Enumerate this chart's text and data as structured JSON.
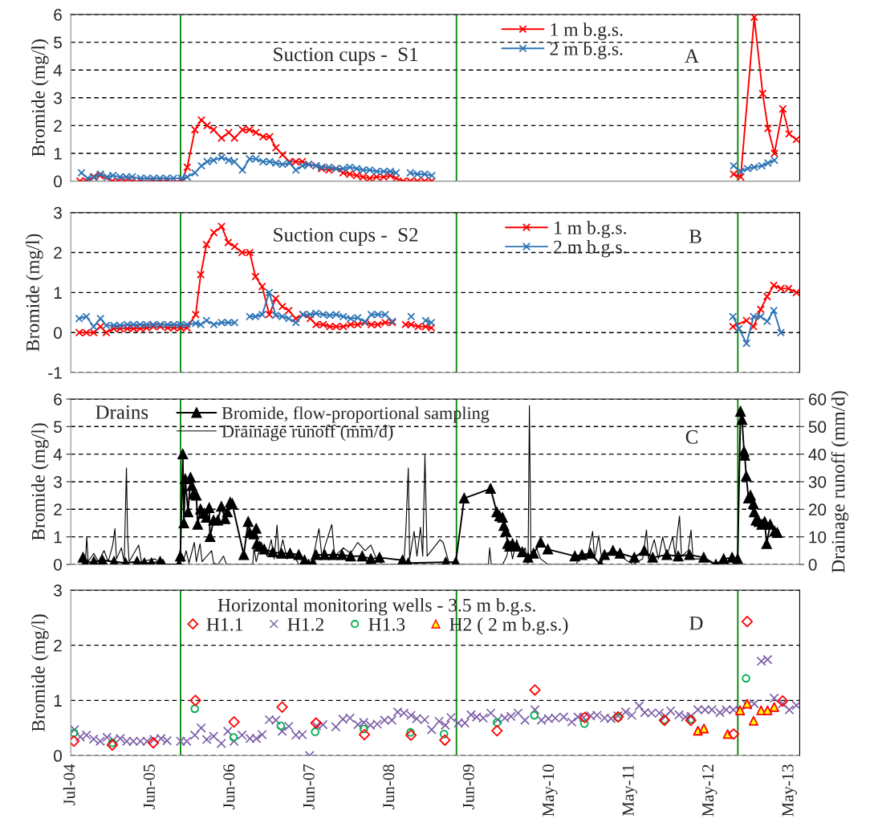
{
  "chart_data": [
    {
      "type": "line",
      "ylabel": "Bromide (mg/l)",
      "annotations": [
        "Suction cups -  S1",
        "A"
      ],
      "xlim": [
        "2004-07-01",
        "2013-07-01"
      ],
      "xticks": [
        {
          "value": "2004-07-01",
          "label": null
        },
        {
          "value": "2005-06-26",
          "label": null
        },
        {
          "value": "2006-06-21",
          "label": null
        },
        {
          "value": "2007-06-16",
          "label": null
        },
        {
          "value": "2008-06-10",
          "label": null
        },
        {
          "value": "2009-06-05",
          "label": null
        },
        {
          "value": "2010-05-31",
          "label": null
        },
        {
          "value": "2011-05-26",
          "label": null
        },
        {
          "value": "2012-05-20",
          "label": null
        },
        {
          "value": "2013-05-15",
          "label": null
        }
      ],
      "ylim": [
        0,
        6
      ],
      "yticks": [
        0,
        1,
        2,
        3,
        4,
        5,
        6
      ],
      "grid": "y",
      "legend": "top",
      "tick_labels": "y",
      "marker": "cross",
      "line_style": "solid",
      "ref_lines": [
        {
          "axis": "x",
          "value": "2005-11-08",
          "color": "#008000"
        },
        {
          "axis": "x",
          "value": "2009-04-05",
          "color": "#008000"
        },
        {
          "axis": "x",
          "value": "2012-09-25",
          "color": "#008000"
        }
      ],
      "series": [
        {
          "name": "1 m b.g.s.",
          "color": "#ff0000",
          "x": [
            "2004-08-11",
            "2004-09-10",
            "2004-10-11",
            "2004-11-10",
            "2005-01-04",
            "2005-02-01",
            "2005-03-03",
            "2005-04-03",
            "2005-05-12",
            "2005-07-06",
            "2005-08-07",
            "2005-09-09",
            "2005-11-12",
            "2005-12-08",
            "2006-01-12",
            "2006-02-10",
            "2006-03-08",
            "2006-04-06",
            "2006-05-12",
            "2006-06-13",
            "2006-07-09",
            "2006-08-14",
            "2006-09-15",
            "2006-10-14",
            "2006-11-15",
            "2006-12-15",
            "2007-01-12",
            "2007-02-11",
            "2007-03-14",
            "2007-04-12",
            "2007-05-11",
            "2007-06-09",
            "2007-07-12",
            "2007-08-06",
            "2007-09-08",
            "2007-10-10",
            "2007-11-11",
            "2007-12-11",
            "2008-01-11",
            "2008-02-09",
            "2008-03-10",
            "2008-04-10",
            "2008-05-12",
            "2008-06-11",
            "2008-07-07",
            "2008-08-08",
            "2008-09-09",
            "2008-10-11",
            "2008-11-13",
            "2008-12-15",
            "2010-01-01",
            "2012-09-06",
            "2012-10-08",
            "2012-12-08",
            "2013-01-15",
            "2013-02-08",
            "2013-03-09",
            "2013-04-16",
            "2013-05-14",
            "2013-06-16"
          ],
          "values": [
            0,
            0,
            0.15,
            0.2,
            0,
            0,
            0,
            0,
            0,
            0,
            0,
            0,
            0,
            0.5,
            1.85,
            2.2,
            2.0,
            1.85,
            1.55,
            1.75,
            1.55,
            1.85,
            1.85,
            1.75,
            1.6,
            1.6,
            1.2,
            0.95,
            0.7,
            0.7,
            0.7,
            0.6,
            0.55,
            0.45,
            0.4,
            0.45,
            0.3,
            0.25,
            0.2,
            0.15,
            0.1,
            0.15,
            0.15,
            0.2,
            0.1,
            0,
            0,
            0,
            0,
            0,
            null,
            0.25,
            0.15,
            5.9,
            3.15,
            1.9,
            1.0,
            2.6,
            1.7,
            1.5
          ]
        },
        {
          "name": "2 m b.g.s.",
          "color": "#2e75b6",
          "x": [
            "2004-08-18",
            "2004-09-15",
            "2004-10-15",
            "2004-11-12",
            "2004-12-12",
            "2005-01-07",
            "2005-02-08",
            "2005-03-08",
            "2005-04-04",
            "2005-05-12",
            "2005-06-10",
            "2005-07-09",
            "2005-08-07",
            "2005-09-06",
            "2005-10-07",
            "2005-11-12",
            "2005-12-08",
            "2006-01-12",
            "2006-02-10",
            "2006-03-08",
            "2006-04-06",
            "2006-05-12",
            "2006-06-13",
            "2006-07-09",
            "2006-08-14",
            "2006-09-15",
            "2006-10-14",
            "2006-11-15",
            "2006-12-15",
            "2007-01-12",
            "2007-02-11",
            "2007-03-14",
            "2007-04-12",
            "2007-05-11",
            "2007-06-09",
            "2007-07-12",
            "2007-08-06",
            "2007-09-08",
            "2007-10-10",
            "2007-11-11",
            "2007-12-11",
            "2008-01-11",
            "2008-02-09",
            "2008-03-10",
            "2008-04-10",
            "2008-05-12",
            "2008-06-11",
            "2008-07-07",
            "2008-08-08",
            "2008-09-09",
            "2008-10-11",
            "2008-11-13",
            "2008-12-15",
            "2010-01-01",
            "2012-09-06",
            "2012-10-08",
            "2012-11-08",
            "2012-12-08",
            "2013-01-11",
            "2013-02-08",
            "2013-03-09"
          ],
          "values": [
            0.3,
            0.1,
            0.15,
            0.25,
            0.15,
            0.2,
            0.15,
            0.15,
            0.15,
            0.1,
            0.1,
            0.1,
            0.1,
            0.1,
            0.1,
            0.1,
            0.15,
            0.3,
            0.55,
            0.7,
            0.75,
            0.85,
            0.75,
            0.7,
            0.4,
            0.8,
            0.8,
            0.7,
            0.7,
            0.65,
            0.6,
            0.65,
            0.4,
            0.55,
            0.6,
            0.55,
            0.5,
            0.5,
            0.45,
            0.45,
            0.5,
            0.45,
            0.4,
            0.4,
            0.35,
            0.35,
            0.35,
            0.3,
            null,
            0.3,
            0.25,
            0.25,
            0.2,
            null,
            0.55,
            0.35,
            0.45,
            0.5,
            0.55,
            0.65,
            0.75
          ]
        }
      ]
    },
    {
      "type": "line",
      "ylabel": "Bromide (mg/l)",
      "annotations": [
        "Suction cups -  S2",
        "B"
      ],
      "xlim": [
        "2004-07-01",
        "2013-07-01"
      ],
      "xticks": [
        {
          "value": "2004-07-01",
          "label": null
        },
        {
          "value": "2005-06-26",
          "label": null
        },
        {
          "value": "2006-06-21",
          "label": null
        },
        {
          "value": "2007-06-16",
          "label": null
        },
        {
          "value": "2008-06-10",
          "label": null
        },
        {
          "value": "2009-06-05",
          "label": null
        },
        {
          "value": "2010-05-31",
          "label": null
        },
        {
          "value": "2011-05-26",
          "label": null
        },
        {
          "value": "2012-05-20",
          "label": null
        },
        {
          "value": "2013-05-15",
          "label": null
        }
      ],
      "ylim": [
        -1,
        3
      ],
      "yticks": [
        -1,
        0,
        1,
        2,
        3
      ],
      "grid": "y",
      "legend": "top",
      "tick_labels": "y",
      "marker": "cross",
      "line_style": "solid",
      "ref_lines": [
        {
          "axis": "x",
          "value": "2005-11-08",
          "color": "#008000"
        },
        {
          "axis": "x",
          "value": "2009-04-05",
          "color": "#008000"
        },
        {
          "axis": "x",
          "value": "2012-09-25",
          "color": "#008000"
        }
      ],
      "series": [
        {
          "name": "1 m b.g.s.",
          "color": "#ff0000",
          "x": [
            "2004-08-08",
            "2004-09-09",
            "2004-10-12",
            "2004-11-12",
            "2004-12-08",
            "2005-01-11",
            "2005-02-08",
            "2005-03-13",
            "2005-04-10",
            "2005-05-10",
            "2005-06-08",
            "2005-07-08",
            "2005-08-09",
            "2005-09-11",
            "2005-10-09",
            "2005-11-08",
            "2005-12-07",
            "2006-01-15",
            "2006-02-07",
            "2006-03-05",
            "2006-04-07",
            "2006-05-12",
            "2006-06-11",
            "2006-07-10",
            "2006-08-12",
            "2006-09-16",
            "2006-10-12",
            "2006-11-11",
            "2006-12-13",
            "2007-01-11",
            "2007-02-10",
            "2007-03-11",
            "2007-04-12",
            "2007-05-14",
            "2007-06-16",
            "2007-07-12",
            "2007-08-13",
            "2007-09-12",
            "2007-10-11",
            "2007-11-12",
            "2007-12-15",
            "2008-01-16",
            "2008-02-18",
            "2008-03-17",
            "2008-04-16",
            "2008-05-19",
            "2008-06-20",
            "2008-07-20",
            "2008-08-18",
            "2008-09-13",
            "2008-10-15",
            "2008-11-17",
            "2008-12-13",
            "2010-01-01",
            "2012-09-03",
            "2012-11-03",
            "2012-12-05",
            "2013-01-06",
            "2013-02-04",
            "2013-03-06",
            "2013-04-07",
            "2013-05-12",
            "2013-06-16"
          ],
          "values": [
            0,
            0,
            0,
            0.15,
            0,
            0.1,
            0.1,
            0.1,
            0.1,
            0.1,
            0.12,
            0.15,
            0.15,
            0.12,
            0.12,
            0.12,
            0.12,
            0.45,
            1.45,
            2.2,
            2.5,
            2.65,
            2.25,
            2.15,
            2.0,
            2.0,
            1.4,
            1.15,
            0.45,
            0.85,
            0.65,
            0.55,
            0.35,
            0.45,
            0.35,
            0.2,
            0.2,
            0.15,
            0.15,
            0.15,
            0.2,
            0.2,
            0.25,
            0.2,
            0.2,
            0.25,
            0.25,
            null,
            0.2,
            0.2,
            0.15,
            0.15,
            0.12,
            null,
            0.15,
            0.3,
            0.15,
            0.58,
            0.9,
            1.18,
            1.1,
            1.1,
            1.0
          ]
        },
        {
          "name": "2 m b.g.s.",
          "color": "#2e75b6",
          "x": [
            "2004-08-08",
            "2004-09-09",
            "2004-10-12",
            "2004-11-12",
            "2004-12-08",
            "2005-01-11",
            "2005-02-08",
            "2005-03-13",
            "2005-04-10",
            "2005-05-10",
            "2005-06-08",
            "2005-07-08",
            "2005-08-09",
            "2005-09-11",
            "2005-10-09",
            "2005-11-08",
            "2005-12-07",
            "2006-01-15",
            "2006-02-07",
            "2006-03-05",
            "2006-04-07",
            "2006-05-12",
            "2006-06-11",
            "2006-07-10",
            "2006-08-12",
            "2006-09-16",
            "2006-10-12",
            "2006-11-11",
            "2006-12-13",
            "2007-01-11",
            "2007-02-10",
            "2007-03-11",
            "2007-04-12",
            "2007-05-14",
            "2007-06-16",
            "2007-07-12",
            "2007-08-13",
            "2007-09-12",
            "2007-10-11",
            "2007-11-12",
            "2007-12-15",
            "2008-01-16",
            "2008-02-18",
            "2008-03-17",
            "2008-04-16",
            "2008-05-19",
            "2008-06-20",
            "2008-07-20",
            "2008-09-13",
            "2008-10-15",
            "2008-11-17",
            "2008-12-13",
            "2010-01-01",
            "2012-09-03",
            "2012-09-30",
            "2012-11-03",
            "2012-12-05",
            "2013-01-06",
            "2013-02-04",
            "2013-03-06",
            "2013-04-07"
          ],
          "values": [
            0.35,
            0.4,
            0.15,
            0.35,
            0.18,
            0.18,
            0.18,
            0.2,
            0.2,
            0.2,
            0.2,
            0.2,
            0.2,
            0.2,
            0.2,
            0.2,
            0.2,
            0.23,
            0.2,
            0.3,
            0.2,
            0.25,
            0.25,
            0.25,
            null,
            0.4,
            0.4,
            0.45,
            1.0,
            0.43,
            0.4,
            0.35,
            0.25,
            0.45,
            0.45,
            0.48,
            0.45,
            0.43,
            0.45,
            0.4,
            0.35,
            0.37,
            0.27,
            0.45,
            0.45,
            0.45,
            0.28,
            null,
            0.4,
            null,
            0.3,
            0.25,
            null,
            0.4,
            0.1,
            -0.27,
            0.4,
            0.4,
            0.28,
            0.55,
            0.0
          ]
        }
      ]
    },
    {
      "type": "line",
      "ylabel": "Bromide (mg/l)",
      "y2label": "Drainage runoff (mm/d)",
      "annotations": [
        "Drains",
        "C"
      ],
      "xlim": [
        "2004-07-01",
        "2013-07-01"
      ],
      "xticks": [
        {
          "value": "2004-07-01",
          "label": null
        },
        {
          "value": "2005-06-26",
          "label": null
        },
        {
          "value": "2006-06-21",
          "label": null
        },
        {
          "value": "2007-06-16",
          "label": null
        },
        {
          "value": "2008-06-10",
          "label": null
        },
        {
          "value": "2009-06-05",
          "label": null
        },
        {
          "value": "2010-05-31",
          "label": null
        },
        {
          "value": "2011-05-26",
          "label": null
        },
        {
          "value": "2012-05-20",
          "label": null
        },
        {
          "value": "2013-05-15",
          "label": null
        }
      ],
      "ylim": [
        0,
        6
      ],
      "yticks": [
        0,
        1,
        2,
        3,
        4,
        5,
        6
      ],
      "y2lim": [
        0,
        60
      ],
      "y2ticks": [
        0,
        10,
        20,
        30,
        40,
        50,
        60
      ],
      "grid": "y",
      "legend": "top",
      "tick_labels": "y",
      "line_style": "solid",
      "ref_lines": [
        {
          "axis": "x",
          "value": "2005-11-08",
          "color": "#008000"
        },
        {
          "axis": "x",
          "value": "2009-04-05",
          "color": "#008000"
        },
        {
          "axis": "x",
          "value": "2012-09-25",
          "color": "#008000"
        }
      ],
      "series": [
        {
          "name": "Drainage runoff (mm/d)",
          "color": "#000000",
          "axis": "y2",
          "marker": "none",
          "x": [
            "2004-09-04",
            "2004-09-11",
            "2004-09-17",
            "2004-10-13",
            "2004-11-02",
            "2004-11-28",
            "2004-12-17",
            "2005-01-06",
            "2005-01-16",
            "2005-01-23",
            "2005-02-14",
            "2005-02-27",
            "2005-03-09",
            "2005-03-14",
            "2005-03-21",
            "2005-05-03",
            "2005-05-16",
            "2005-07-13",
            "2005-08-27",
            "2005-10-25",
            "2005-11-05",
            "2005-11-20",
            "2005-12-03",
            "2005-12-16",
            "2006-01-09",
            "2006-01-18",
            "2006-02-04",
            "2006-02-13",
            "2006-03-28",
            "2006-04-06",
            "2006-04-25",
            "2006-05-21",
            "2006-06-03",
            "2006-09-29",
            "2006-10-05",
            "2006-10-15",
            "2006-11-07",
            "2006-12-03",
            "2006-12-22",
            "2007-01-04",
            "2007-01-17",
            "2007-01-26",
            "2007-02-12",
            "2007-03-04",
            "2007-03-30",
            "2007-04-25",
            "2007-06-16",
            "2007-07-05",
            "2007-07-25",
            "2007-08-07",
            "2007-09-21",
            "2007-10-04",
            "2007-11-12",
            "2007-12-15",
            "2008-01-16",
            "2008-02-18",
            "2008-03-15",
            "2008-04-10",
            "2008-05-06",
            "2008-08-11",
            "2008-08-20",
            "2008-08-31",
            "2008-09-06",
            "2008-09-26",
            "2008-10-09",
            "2008-10-25",
            "2008-11-04",
            "2008-11-14",
            "2008-11-24",
            "2009-01-21",
            "2009-02-04",
            "2009-03-01",
            "2009-04-09",
            "2009-08-27",
            "2009-09-02",
            "2009-09-09",
            "2009-10-30",
            "2009-11-18",
            "2009-12-01",
            "2009-12-14",
            "2010-01-02",
            "2010-01-21",
            "2010-02-09",
            "2010-02-22",
            "2010-02-28",
            "2010-03-07",
            "2010-04-01",
            "2010-04-20",
            "2010-05-22",
            "2010-09-27",
            "2010-10-23",
            "2010-11-17",
            "2010-12-10",
            "2010-12-19",
            "2011-01-07",
            "2011-01-20",
            "2011-02-21",
            "2011-03-25",
            "2011-05-02",
            "2011-06-10",
            "2011-07-24",
            "2011-08-10",
            "2011-08-19",
            "2011-09-14",
            "2011-10-03",
            "2011-10-22",
            "2011-11-10",
            "2011-12-06",
            "2011-12-18",
            "2011-12-27",
            "2012-01-06",
            "2012-01-15",
            "2012-02-14",
            "2012-02-27",
            "2012-03-07",
            "2012-04-24",
            "2012-06-14",
            "2012-09-24"
          ],
          "values": [
            0,
            10,
            1,
            4,
            1,
            5,
            1,
            7,
            13,
            2,
            6,
            1,
            35,
            10.5,
            1,
            7,
            1,
            2,
            0,
            0,
            5,
            1,
            5,
            0.5,
            8,
            1,
            7.5,
            1,
            5,
            0.5,
            0,
            3,
            0,
            0,
            6,
            1,
            8,
            3,
            9,
            2,
            14.3,
            3,
            9,
            2,
            4,
            0,
            0,
            5,
            13,
            3,
            14.5,
            3,
            6,
            4,
            8,
            5,
            7,
            2,
            0,
            0,
            12.5,
            35,
            2,
            12,
            3,
            13.5,
            3,
            39.7,
            3,
            9,
            8,
            1,
            0,
            0,
            6,
            0,
            0,
            3,
            8,
            2,
            9,
            3,
            6,
            0,
            57.6,
            2,
            6,
            2,
            0,
            0,
            4,
            3,
            12,
            2,
            10.4,
            2,
            4,
            4,
            2,
            0,
            2,
            12.5,
            2,
            9,
            2,
            10,
            3,
            10,
            3,
            11,
            17.5,
            3,
            5,
            12.5,
            2,
            2,
            0,
            0
          ]
        },
        {
          "name": "Bromide, flow-proportional sampling",
          "color": "#000000",
          "marker": "triangle",
          "x": [
            "2004-08-25",
            "2004-09-04",
            "2004-10-13",
            "2004-11-21",
            "2005-01-12",
            "2005-03-05",
            "2005-04-26",
            "2005-05-29",
            "2005-06-30",
            "2005-08-08",
            "2005-08-21",
            "2005-11-01",
            "2005-11-07",
            "2005-11-18",
            "2005-11-23",
            "2005-11-29",
            "2005-12-12",
            "2005-12-23",
            "2005-12-29",
            "2006-01-05",
            "2006-01-18",
            "2006-01-24",
            "2006-02-06",
            "2006-02-22",
            "2006-03-04",
            "2006-03-17",
            "2006-03-21",
            "2006-04-06",
            "2006-04-25",
            "2006-05-11",
            "2006-05-28",
            "2006-06-07",
            "2006-06-20",
            "2006-06-29",
            "2006-08-20",
            "2006-09-09",
            "2006-09-16",
            "2006-10-05",
            "2006-10-15",
            "2006-10-18",
            "2006-10-31",
            "2006-11-20",
            "2006-12-29",
            "2007-02-06",
            "2007-03-17",
            "2007-04-25",
            "2007-05-21",
            "2007-06-09",
            "2007-06-29",
            "2007-07-12",
            "2007-08-20",
            "2007-09-28",
            "2007-11-06",
            "2007-12-15",
            "2008-02-05",
            "2008-03-15",
            "2008-04-23",
            "2008-08-05",
            "2008-08-31",
            "2009-02-16",
            "2009-04-02",
            "2009-05-10",
            "2009-09-06",
            "2009-10-04",
            "2009-10-17",
            "2009-10-30",
            "2009-11-05",
            "2009-11-14",
            "2009-11-22",
            "2009-12-01",
            "2009-12-14",
            "2010-01-02",
            "2010-01-27",
            "2010-02-22",
            "2010-03-19",
            "2010-04-20",
            "2010-05-22",
            "2010-09-21",
            "2010-10-23",
            "2010-11-30",
            "2011-01-14",
            "2011-02-02",
            "2011-03-12",
            "2011-04-13",
            "2011-06-16",
            "2011-07-31",
            "2011-09-07",
            "2011-11-10",
            "2011-12-31",
            "2012-02-20",
            "2012-04-24",
            "2012-06-18",
            "2012-07-23",
            "2012-08-30",
            "2012-09-24",
            "2012-10-07",
            "2012-10-14",
            "2012-10-23",
            "2012-10-26",
            "2012-11-02",
            "2012-11-12",
            "2012-11-21",
            "2012-12-04",
            "2012-12-08",
            "2012-12-16",
            "2012-12-29",
            "2013-01-11",
            "2013-01-24",
            "2013-02-02",
            "2013-02-18",
            "2013-03-10",
            "2013-03-22"
          ],
          "values": [
            0.25,
            0.05,
            0.1,
            0.15,
            0.1,
            0.05,
            0.1,
            0.05,
            0.05,
            0.1,
            0,
            0,
            0.3,
            4.0,
            1.5,
            3.1,
            1.9,
            3.15,
            2.85,
            2.55,
            2.5,
            1.45,
            2.0,
            1.85,
            1.7,
            2.05,
            1.0,
            1.6,
            1.6,
            2.1,
            1.65,
            1.9,
            2.25,
            2.2,
            0.35,
            1.55,
            1.15,
            1.1,
            1.3,
            0.75,
            0.65,
            0.55,
            0.45,
            0.4,
            0.4,
            0.35,
            0.15,
            0,
            0.05,
            0.35,
            0.35,
            0.35,
            0.35,
            0.3,
            0.3,
            0.2,
            0.25,
            0.15,
            0.05,
            0.08,
            0.08,
            2.4,
            2.75,
            1.9,
            1.75,
            1.7,
            1.4,
            1.2,
            0.75,
            0.65,
            0.75,
            0.65,
            0.45,
            0.25,
            0.4,
            0.8,
            0.55,
            0.3,
            0.35,
            0.4,
            0.0,
            0.35,
            0.5,
            0.4,
            0.25,
            0.5,
            0.25,
            0.35,
            0.3,
            0.35,
            0.25,
            0,
            0.2,
            0.25,
            0.2,
            5.55,
            5.25,
            4.1,
            3.95,
            3.2,
            2.4,
            2.5,
            2.2,
            1.9,
            1.6,
            1.55,
            1.45,
            1.55,
            0.75,
            1.45,
            1.2,
            1.15
          ]
        }
      ]
    },
    {
      "type": "scatter",
      "ylabel": "Bromide (mg/l)",
      "legend_title": "Horizontal monitoring wells - 3.5 m b.g.s.",
      "annotations": [
        "D"
      ],
      "xlim": [
        "2004-07-01",
        "2013-07-01"
      ],
      "xticks": [
        {
          "value": "2004-07-01",
          "label": "Jul-04"
        },
        {
          "value": "2005-06-26",
          "label": "Jun-05"
        },
        {
          "value": "2006-06-21",
          "label": "Jun-06"
        },
        {
          "value": "2007-06-16",
          "label": "Jun-07"
        },
        {
          "value": "2008-06-10",
          "label": "Jun-08"
        },
        {
          "value": "2009-06-05",
          "label": "Jun-09"
        },
        {
          "value": "2010-05-31",
          "label": "May-10"
        },
        {
          "value": "2011-05-26",
          "label": "May-11"
        },
        {
          "value": "2012-05-20",
          "label": "May-12"
        },
        {
          "value": "2013-05-15",
          "label": "May-13"
        }
      ],
      "ylim": [
        0,
        3
      ],
      "yticks": [
        0,
        1,
        2,
        3
      ],
      "grid": "y",
      "legend": "top",
      "ref_lines": [
        {
          "axis": "x",
          "value": "2005-11-08",
          "color": "#008000"
        },
        {
          "axis": "x",
          "value": "2009-04-05",
          "color": "#008000"
        },
        {
          "axis": "x",
          "value": "2012-09-25",
          "color": "#008000"
        }
      ],
      "series": [
        {
          "name": "H1.1",
          "color": "#ff0000",
          "marker": "diamond",
          "x": [
            "2004-07-15",
            "2005-01-04",
            "2005-07-08",
            "2006-01-14",
            "2006-07-07",
            "2007-02-09",
            "2007-07-12",
            "2008-02-15",
            "2008-09-12",
            "2009-02-12",
            "2009-10-05",
            "2010-03-25",
            "2010-11-05",
            "2011-04-04",
            "2011-10-30",
            "2012-02-26",
            "2012-09-06",
            "2012-11-06",
            "2013-04-15"
          ],
          "values": [
            0.26,
            0.19,
            0.23,
            1.0,
            0.61,
            0.88,
            0.59,
            0.38,
            0.37,
            0.28,
            0.45,
            1.19,
            0.69,
            0.7,
            0.64,
            0.64,
            0.39,
            2.43,
            0.99
          ]
        },
        {
          "name": "H1.2",
          "color": "#7b5ea7",
          "marker": "cross",
          "x": [
            "2004-07-18",
            "2004-08-13",
            "2004-09-10",
            "2004-10-12",
            "2004-11-11",
            "2004-12-11",
            "2005-01-08",
            "2005-02-09",
            "2005-03-10",
            "2005-04-09",
            "2005-05-11",
            "2005-06-10",
            "2005-07-12",
            "2005-08-12",
            "2005-09-08",
            "2005-11-08",
            "2005-12-06",
            "2006-01-11",
            "2006-02-09",
            "2006-03-06",
            "2006-04-06",
            "2006-05-11",
            "2006-06-09",
            "2006-07-07",
            "2006-08-12",
            "2006-09-17",
            "2006-10-16",
            "2006-11-11",
            "2006-12-13",
            "2007-01-12",
            "2007-02-09",
            "2007-03-11",
            "2007-04-12",
            "2007-05-11",
            "2007-06-13",
            "2007-07-14",
            "2007-08-12",
            "2007-10-09",
            "2007-11-10",
            "2007-12-12",
            "2008-01-17",
            "2008-02-12",
            "2008-03-13",
            "2008-04-13",
            "2008-05-16",
            "2008-06-18",
            "2008-07-14",
            "2008-08-11",
            "2008-09-12",
            "2008-10-08",
            "2008-11-13",
            "2008-12-14",
            "2009-01-17",
            "2009-02-14",
            "2009-03-11",
            "2009-04-14",
            "2009-05-13",
            "2009-06-10",
            "2009-07-05",
            "2009-08-04",
            "2009-09-07",
            "2009-10-08",
            "2009-11-09",
            "2009-12-07",
            "2010-01-08",
            "2010-02-08",
            "2010-03-25",
            "2010-04-23",
            "2010-05-25",
            "2010-06-25",
            "2010-08-02",
            "2010-09-07",
            "2010-10-05",
            "2010-10-30",
            "2010-12-01",
            "2010-12-30",
            "2011-02-02",
            "2011-03-03",
            "2011-04-03",
            "2011-05-08",
            "2011-06-05",
            "2011-07-08",
            "2011-08-02",
            "2011-09-02",
            "2011-10-07",
            "2011-11-04",
            "2011-11-27",
            "2012-01-04",
            "2012-02-02",
            "2012-02-26",
            "2012-03-29",
            "2012-04-30",
            "2012-05-31",
            "2012-07-06",
            "2012-08-04",
            "2012-09-05",
            "2012-10-06",
            "2012-11-07",
            "2012-12-08",
            "2013-01-09",
            "2013-02-06",
            "2013-03-08",
            "2013-04-15",
            "2013-05-15",
            "2013-06-16"
          ],
          "values": [
            0.47,
            0.34,
            0.37,
            0.3,
            0.26,
            0.33,
            0.28,
            0.31,
            0.26,
            0.26,
            0.26,
            0.26,
            0.29,
            0.31,
            0.27,
            0.26,
            0.26,
            0.37,
            0.5,
            0.29,
            0.35,
            0.22,
            0.44,
            0.26,
            0.37,
            0.31,
            0.31,
            0.38,
            0.65,
            0.64,
            0.44,
            0.53,
            0.37,
            0.38,
            0.0,
            0.54,
            0.56,
            0.52,
            0.66,
            0.68,
            0.56,
            0.6,
            0.55,
            0.57,
            0.64,
            0.64,
            0.79,
            0.77,
            0.73,
            0.67,
            0.65,
            0.47,
            0.62,
            0.55,
            0.69,
            0.59,
            0.59,
            0.74,
            0.7,
            0.68,
            0.77,
            0.65,
            0.68,
            0.71,
            0.77,
            0.64,
            0.83,
            0.64,
            0.67,
            0.68,
            0.7,
            0.61,
            0.7,
            0.69,
            0.72,
            0.73,
            0.68,
            0.67,
            0.72,
            0.79,
            0.73,
            0.9,
            0.78,
            0.77,
            0.77,
            0.71,
            0.81,
            0.74,
            0.7,
            0.71,
            0.83,
            0.83,
            0.83,
            0.78,
            0.83,
            0.83,
            0.8,
            0.91,
            0.94,
            1.71,
            1.74,
            1.04,
            0.94,
            0.83,
            0.91
          ]
        },
        {
          "name": "H1.3",
          "color": "#00b050",
          "marker": "circle",
          "x": [
            "2004-07-15",
            "2005-01-04",
            "2006-01-11",
            "2006-07-05",
            "2007-02-03",
            "2007-07-08",
            "2008-02-12",
            "2008-09-10",
            "2009-02-08",
            "2009-10-05",
            "2010-03-22",
            "2010-11-03",
            "2011-04-04",
            "2011-10-30",
            "2012-02-26",
            "2012-11-01"
          ],
          "values": [
            0.41,
            0.23,
            0.85,
            0.33,
            0.54,
            0.43,
            0.48,
            0.42,
            0.39,
            0.6,
            0.73,
            0.58,
            0.69,
            0.65,
            0.66,
            1.4
          ]
        },
        {
          "name": "H2 ( 2 m b.g.s.)",
          "color": "#ffff00",
          "marker": "triangle",
          "x": [
            "2012-03-29",
            "2012-04-25",
            "2012-08-10",
            "2012-10-05",
            "2012-11-06",
            "2012-12-05",
            "2013-01-08",
            "2013-02-06",
            "2013-03-08"
          ],
          "values": [
            0.45,
            0.49,
            0.39,
            0.82,
            0.94,
            0.63,
            0.82,
            0.82,
            0.88
          ]
        }
      ]
    }
  ]
}
